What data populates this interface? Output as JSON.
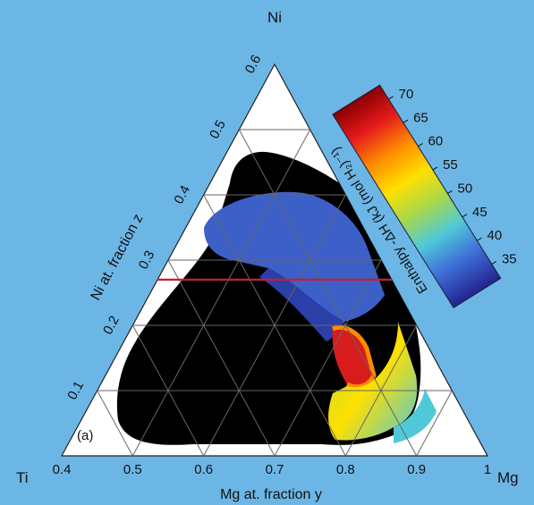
{
  "chart_data": {
    "type": "heatmap",
    "subtype": "ternary",
    "panel_label": "(a)",
    "corners": {
      "top": "Ni",
      "left": "Ti",
      "right": "Mg"
    },
    "xlabel": "Mg at. fraction y",
    "ylabel": "Ni at. fraction z",
    "x_ticks": [
      "0.4",
      "0.5",
      "0.6",
      "0.7",
      "0.8",
      "0.9",
      "1"
    ],
    "y_ticks": [
      "0.1",
      "0.2",
      "0.3",
      "0.4",
      "0.5",
      "0.6"
    ],
    "xlim": [
      0.4,
      1.0
    ],
    "ylim": [
      0.0,
      0.6
    ],
    "colorbar": {
      "label": "Enthalpy -ΔH (kJ (mol H₂)⁻¹)",
      "ticks": [
        "70",
        "65",
        "60",
        "55",
        "50",
        "45",
        "40",
        "35"
      ],
      "range": [
        32,
        73
      ],
      "colors": [
        "#8b0000",
        "#e41a1c",
        "#ff8c00",
        "#ffe000",
        "#a8d84a",
        "#4fc9d8",
        "#3f6fd8",
        "#23238f"
      ]
    },
    "reference_line": {
      "z": 0.27,
      "color": "#c0203a"
    },
    "no_data_color": "#000000",
    "background_color": "#6cb6e6"
  }
}
